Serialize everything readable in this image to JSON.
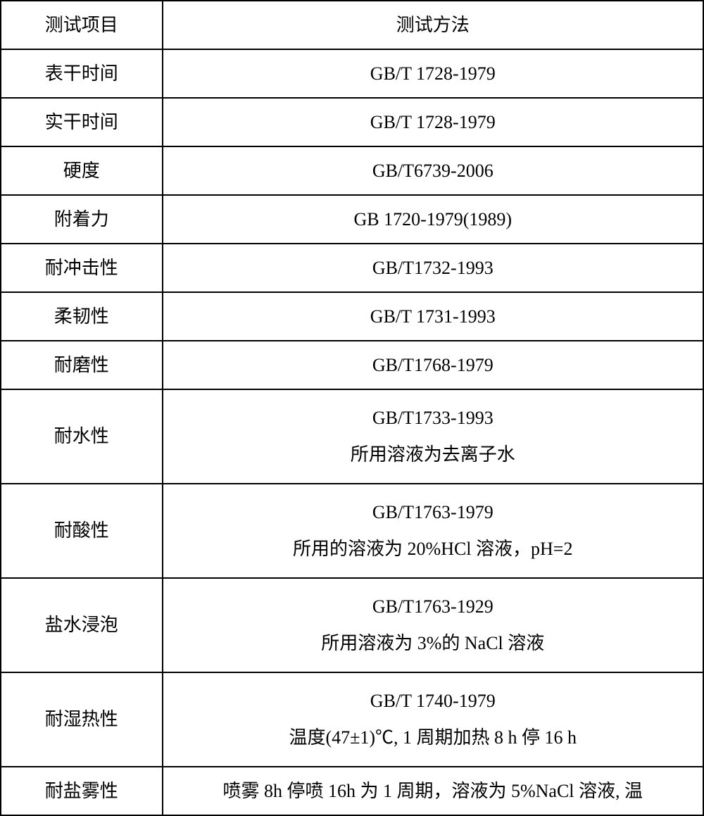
{
  "table": {
    "header": {
      "item": "测试项目",
      "method": "测试方法"
    },
    "rows": [
      {
        "item": "表干时间",
        "method": "GB/T 1728-1979"
      },
      {
        "item": "实干时间",
        "method": "GB/T 1728-1979"
      },
      {
        "item": "硬度",
        "method": "GB/T6739-2006"
      },
      {
        "item": "附着力",
        "method": "GB 1720-1979(1989)"
      },
      {
        "item": "耐冲击性",
        "method": "GB/T1732-1993"
      },
      {
        "item": "柔韧性",
        "method": "GB/T 1731-1993"
      },
      {
        "item": "耐磨性",
        "method": "GB/T1768-1979"
      },
      {
        "item": "耐水性",
        "method_line1": "GB/T1733-1993",
        "method_line2": "所用溶液为去离子水"
      },
      {
        "item": "耐酸性",
        "method_line1": "GB/T1763-1979",
        "method_line2": "所用的溶液为 20%HCl 溶液，pH=2"
      },
      {
        "item": "盐水浸泡",
        "method_line1": "GB/T1763-1929",
        "method_line2": "所用溶液为 3%的 NaCl 溶液"
      },
      {
        "item": "耐湿热性",
        "method_line1": "GB/T 1740-1979",
        "method_line2": "温度(47±1)℃, 1 周期加热 8 h 停 16 h"
      },
      {
        "item": "耐盐雾性",
        "method": "喷雾 8h 停喷 16h 为 1 周期，溶液为 5%NaCl 溶液, 温"
      }
    ],
    "styling": {
      "border_color": "#000000",
      "border_width": 2,
      "background_color": "#ffffff",
      "text_color": "#000000",
      "font_size": 26,
      "font_family": "SimSun",
      "col_item_width_pct": 23,
      "col_method_width_pct": 77,
      "cell_padding_vertical": 14,
      "cell_padding_horizontal": 8,
      "text_align": "center"
    }
  }
}
